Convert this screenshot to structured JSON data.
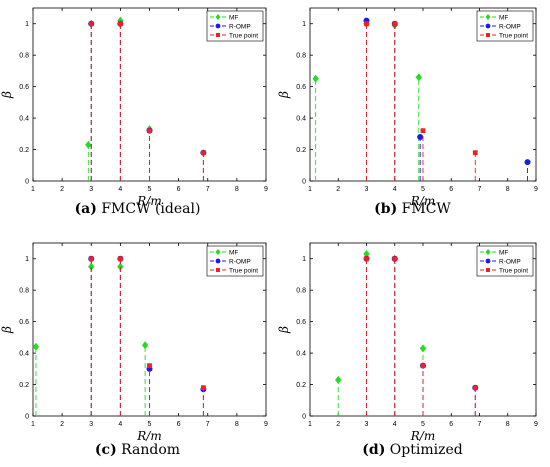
{
  "colors": {
    "mf": "#22dd22",
    "romp": "#1a1aee",
    "true_point": "#ee2222",
    "axis": "#000000"
  },
  "chart_data": [
    {
      "type": "stem",
      "caption": {
        "tag": "(a)",
        "text": "FMCW (ideal)"
      },
      "xlabel": "R/m",
      "ylabel": "β",
      "xlim": [
        1,
        9
      ],
      "ylim": [
        0,
        1.1
      ],
      "xticks": [
        "1",
        "2",
        "3",
        "4",
        "5",
        "6",
        "7",
        "8",
        "9"
      ],
      "yticks": [
        "0",
        "0.2",
        "0.4",
        "0.6",
        "0.8",
        "1"
      ],
      "legend_position": "top-right",
      "series": [
        {
          "name": "MF",
          "marker": "diamond",
          "x": [
            2.9,
            3.0,
            4.0,
            5.0
          ],
          "y": [
            0.23,
            1.0,
            1.02,
            0.33
          ]
        },
        {
          "name": "R-OMP",
          "marker": "circle",
          "x": [
            3.0,
            4.0,
            5.0,
            6.85
          ],
          "y": [
            1.0,
            1.0,
            0.32,
            0.18
          ]
        },
        {
          "name": "True point",
          "marker": "square",
          "x": [
            3.0,
            4.0,
            5.0,
            6.85
          ],
          "y": [
            1.0,
            1.0,
            0.32,
            0.18
          ]
        }
      ]
    },
    {
      "type": "stem",
      "caption": {
        "tag": "(b)",
        "text": "FMCW"
      },
      "xlabel": "R/m",
      "ylabel": "β",
      "xlim": [
        1,
        9
      ],
      "ylim": [
        0,
        1.1
      ],
      "xticks": [
        "1",
        "2",
        "3",
        "4",
        "5",
        "6",
        "7",
        "8",
        "9"
      ],
      "yticks": [
        "0",
        "0.2",
        "0.4",
        "0.6",
        "0.8",
        "1"
      ],
      "legend_position": "top-right",
      "series": [
        {
          "name": "MF",
          "marker": "diamond",
          "x": [
            1.2,
            3.0,
            4.0,
            4.85
          ],
          "y": [
            0.65,
            1.0,
            0.99,
            0.66
          ]
        },
        {
          "name": "R-OMP",
          "marker": "circle",
          "x": [
            3.0,
            4.0,
            4.9,
            8.7
          ],
          "y": [
            1.02,
            1.0,
            0.28,
            0.12
          ]
        },
        {
          "name": "True point",
          "marker": "square",
          "x": [
            3.0,
            4.0,
            5.0,
            6.85
          ],
          "y": [
            1.0,
            1.0,
            0.32,
            0.18
          ]
        }
      ]
    },
    {
      "type": "stem",
      "caption": {
        "tag": "(c)",
        "text": "Random"
      },
      "xlabel": "R/m",
      "ylabel": "β",
      "xlim": [
        1,
        9
      ],
      "ylim": [
        0,
        1.1
      ],
      "xticks": [
        "1",
        "2",
        "3",
        "4",
        "5",
        "6",
        "7",
        "8",
        "9"
      ],
      "yticks": [
        "0",
        "0.2",
        "0.4",
        "0.6",
        "0.8",
        "1"
      ],
      "legend_position": "top-right",
      "series": [
        {
          "name": "MF",
          "marker": "diamond",
          "x": [
            1.1,
            3.0,
            4.0,
            4.85
          ],
          "y": [
            0.44,
            0.95,
            0.95,
            0.45
          ]
        },
        {
          "name": "R-OMP",
          "marker": "circle",
          "x": [
            3.0,
            4.0,
            5.0,
            6.85
          ],
          "y": [
            1.0,
            1.0,
            0.3,
            0.17
          ]
        },
        {
          "name": "True point",
          "marker": "square",
          "x": [
            3.0,
            4.0,
            5.0,
            6.85
          ],
          "y": [
            1.0,
            1.0,
            0.32,
            0.18
          ]
        }
      ]
    },
    {
      "type": "stem",
      "caption": {
        "tag": "(d)",
        "text": "Optimized"
      },
      "xlabel": "R/m",
      "ylabel": "β",
      "xlim": [
        1,
        9
      ],
      "ylim": [
        0,
        1.1
      ],
      "xticks": [
        "1",
        "2",
        "3",
        "4",
        "5",
        "6",
        "7",
        "8",
        "9"
      ],
      "yticks": [
        "0",
        "0.2",
        "0.4",
        "0.6",
        "0.8",
        "1"
      ],
      "legend_position": "top-right",
      "series": [
        {
          "name": "MF",
          "marker": "diamond",
          "x": [
            2.0,
            3.0,
            4.0,
            5.0
          ],
          "y": [
            0.23,
            1.03,
            1.0,
            0.43
          ]
        },
        {
          "name": "R-OMP",
          "marker": "circle",
          "x": [
            3.0,
            4.0,
            5.0,
            6.85
          ],
          "y": [
            1.0,
            1.0,
            0.32,
            0.18
          ]
        },
        {
          "name": "True point",
          "marker": "square",
          "x": [
            3.0,
            4.0,
            5.0,
            6.85
          ],
          "y": [
            1.0,
            1.0,
            0.32,
            0.18
          ]
        }
      ]
    }
  ]
}
